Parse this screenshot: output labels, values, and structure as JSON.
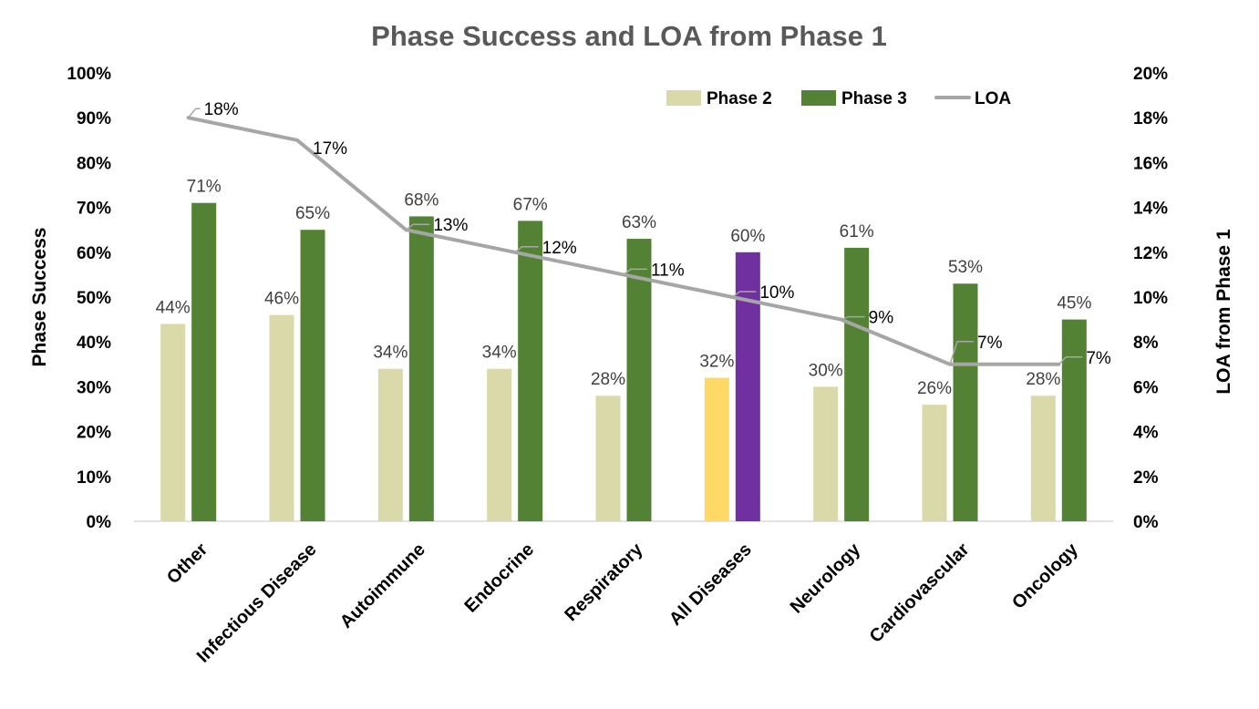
{
  "chart_data": {
    "type": "bar",
    "title": "Phase Success and LOA from Phase 1",
    "ylabel": "Phase Success",
    "y2label": "LOA from Phase 1",
    "ylim": [
      0,
      100
    ],
    "y2lim": [
      0,
      20
    ],
    "yticks": [
      "0%",
      "10%",
      "20%",
      "30%",
      "40%",
      "50%",
      "60%",
      "70%",
      "80%",
      "90%",
      "100%"
    ],
    "y2ticks": [
      "0%",
      "2%",
      "4%",
      "6%",
      "8%",
      "10%",
      "12%",
      "14%",
      "16%",
      "18%",
      "20%"
    ],
    "categories": [
      "Other",
      "Infectious Disease",
      "Autoimmune",
      "Endocrine",
      "Respiratory",
      "All Diseases",
      "Neurology",
      "Cardiovascular",
      "Oncology"
    ],
    "series": [
      {
        "name": "Phase 2",
        "type": "bar",
        "axis": "left",
        "color": "#D9D9A9",
        "highlight_color": "#FFD966",
        "values": [
          44,
          46,
          34,
          34,
          28,
          32,
          30,
          26,
          28
        ],
        "labels": [
          "44%",
          "46%",
          "34%",
          "34%",
          "28%",
          "32%",
          "30%",
          "26%",
          "28%"
        ]
      },
      {
        "name": "Phase 3",
        "type": "bar",
        "axis": "left",
        "color": "#548235",
        "highlight_color": "#7030A0",
        "values": [
          71,
          65,
          68,
          67,
          63,
          60,
          61,
          53,
          45
        ],
        "labels": [
          "71%",
          "65%",
          "68%",
          "67%",
          "63%",
          "60%",
          "61%",
          "53%",
          "45%"
        ]
      },
      {
        "name": "LOA",
        "type": "line",
        "axis": "right",
        "color": "#A6A6A6",
        "values": [
          18,
          17,
          13,
          12,
          11,
          10,
          9,
          7,
          7
        ],
        "labels": [
          "18%",
          "17%",
          "13%",
          "12%",
          "11%",
          "10%",
          "9%",
          "7%",
          "7%"
        ]
      }
    ],
    "highlight_category": "All Diseases",
    "legend": {
      "position": "top-right",
      "items": [
        "Phase 2",
        "Phase 3",
        "LOA"
      ]
    },
    "grid": false
  }
}
